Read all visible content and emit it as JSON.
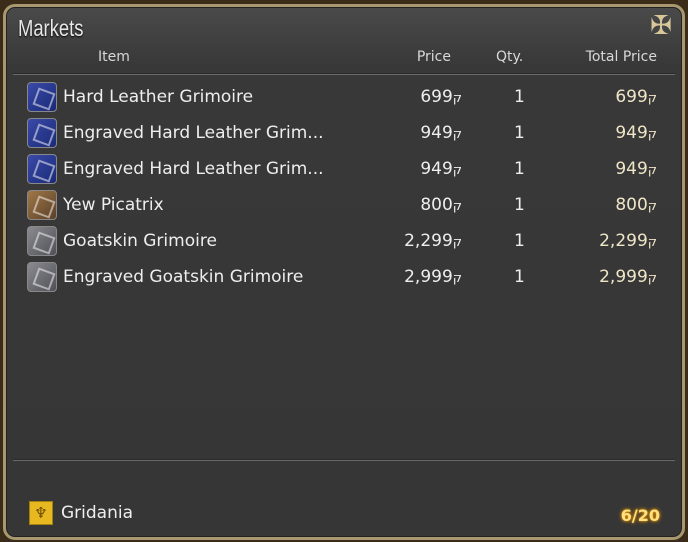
{
  "window": {
    "title": "Markets"
  },
  "currency_symbol": "ק",
  "columns": {
    "item": "Item",
    "price": "Price",
    "qty": "Qty.",
    "total": "Total Price"
  },
  "items": [
    {
      "name": "Hard Leather Grimoire",
      "price": "699",
      "qty": "1",
      "total": "699",
      "icon": "blue"
    },
    {
      "name": "Engraved Hard Leather Grim...",
      "price": "949",
      "qty": "1",
      "total": "949",
      "icon": "blue"
    },
    {
      "name": "Engraved Hard Leather Grim...",
      "price": "949",
      "qty": "1",
      "total": "949",
      "icon": "blue"
    },
    {
      "name": "Yew Picatrix",
      "price": "800",
      "qty": "1",
      "total": "800",
      "icon": "brown"
    },
    {
      "name": "Goatskin Grimoire",
      "price": "2,299",
      "qty": "1",
      "total": "2,299",
      "icon": "grey"
    },
    {
      "name": "Engraved Goatskin Grimoire",
      "price": "2,999",
      "qty": "1",
      "total": "2,999",
      "icon": "grey"
    }
  ],
  "footer": {
    "location": "Gridania",
    "count": "6/20"
  }
}
